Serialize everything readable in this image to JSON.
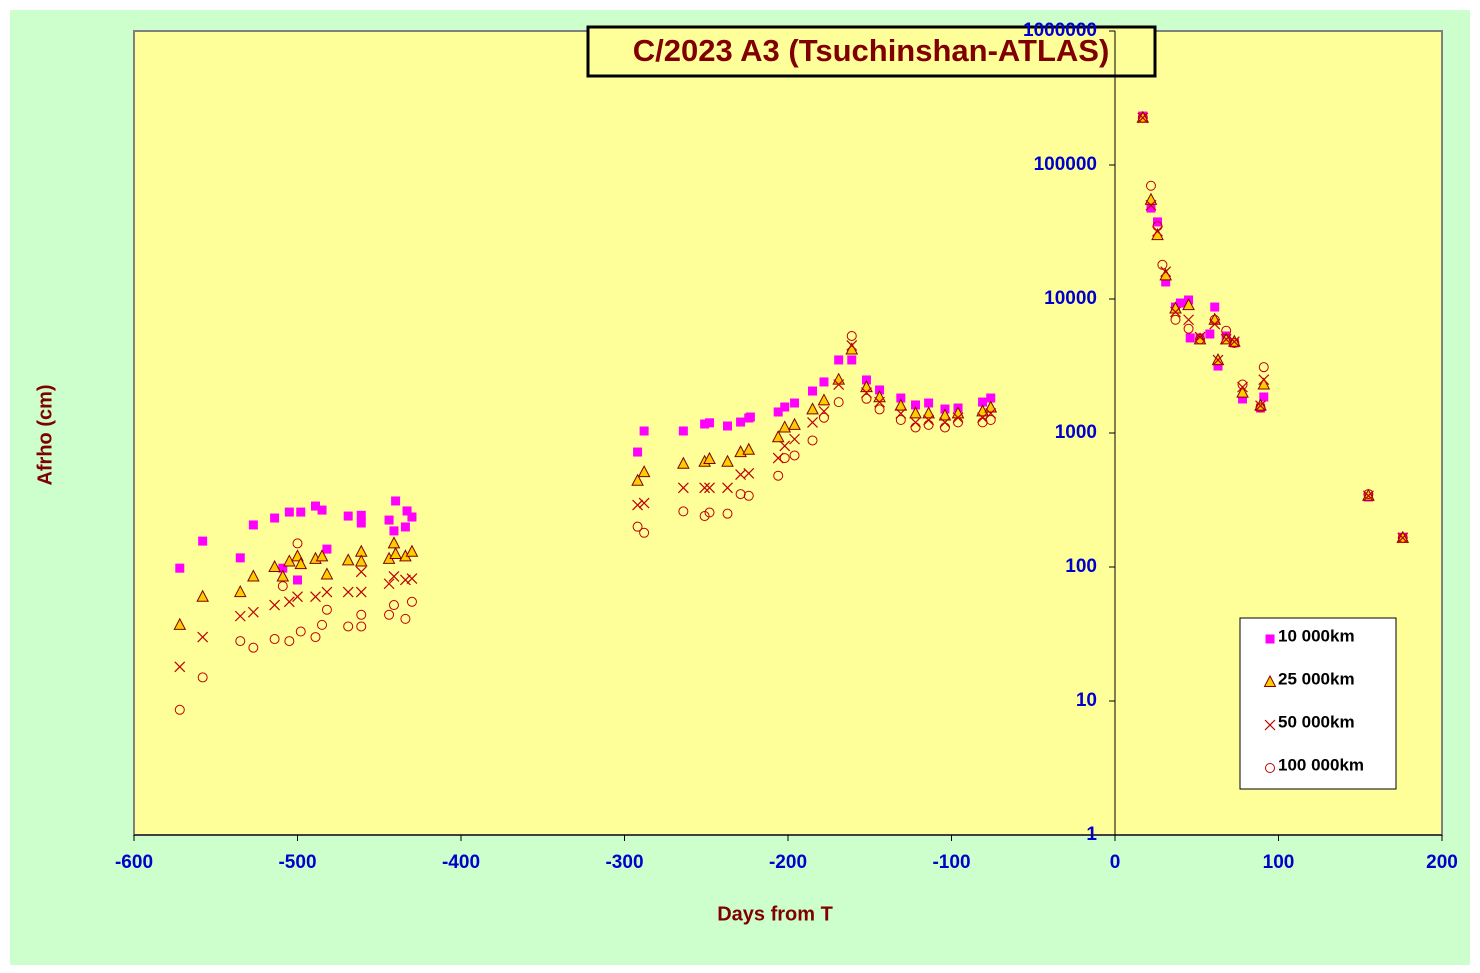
{
  "chart_data": {
    "type": "scatter",
    "title": "C/2023 A3 (Tsuchinshan-ATLAS)",
    "x_label": "Days from T",
    "y_label": "Afrho (cm)",
    "log_y": true,
    "xlim": [
      -600,
      200
    ],
    "xticks": [
      -600,
      -500,
      -400,
      -300,
      -200,
      -100,
      0,
      100,
      200
    ],
    "ylim": [
      1,
      1000000
    ],
    "yticks": [
      1,
      10,
      100,
      1000,
      10000,
      100000,
      1000000
    ],
    "legend": "lower right",
    "series": [
      {
        "name": "10 000km",
        "color": "#ff00ff",
        "marker": "square",
        "x": [
          -572,
          -558,
          -535,
          -527,
          -514,
          -509,
          -505,
          -500,
          -498,
          -489,
          -485,
          -482,
          -469,
          -461,
          -461,
          -444,
          -441,
          -440,
          -434,
          -433,
          -430,
          -292,
          -288,
          -264,
          -251,
          -248,
          -237,
          -229,
          -224,
          -223,
          -206,
          -202,
          -196,
          -185,
          -178,
          -169,
          -161,
          -152,
          -144,
          -131,
          -122,
          -114,
          -104,
          -96,
          -81,
          -76,
          17,
          22,
          26,
          31,
          37,
          40,
          45,
          46,
          52,
          58,
          61,
          63,
          68,
          73,
          78,
          89,
          91,
          155,
          176
        ],
        "values": [
          98,
          156,
          117,
          206,
          232,
          98,
          257,
          80,
          257,
          285,
          266,
          136,
          240,
          243,
          213,
          224,
          186,
          311,
          199,
          262,
          236,
          721,
          1035,
          1035,
          1167,
          1191,
          1128,
          1207,
          1294,
          1316,
          1435,
          1563,
          1674,
          2057,
          2404,
          3509,
          3509,
          2488,
          2094,
          1824,
          1619,
          1674,
          1510,
          1536,
          1702,
          1824,
          232000,
          47700,
          37600,
          13400,
          8710,
          9330,
          9830,
          5120,
          5120,
          5480,
          8710,
          3160,
          5300,
          4700,
          1795,
          1536,
          1857,
          333,
          167
        ]
      },
      {
        "name": "25 000km",
        "color": "#ffcc00",
        "marker": "triangle",
        "x": [
          -572,
          -558,
          -535,
          -527,
          -514,
          -509,
          -505,
          -500,
          -498,
          -489,
          -485,
          -482,
          -469,
          -461,
          -461,
          -444,
          -441,
          -440,
          -434,
          -430,
          -292,
          -288,
          -264,
          -251,
          -248,
          -237,
          -229,
          -224,
          -206,
          -202,
          -196,
          -185,
          -178,
          -169,
          -161,
          -152,
          -144,
          -131,
          -122,
          -114,
          -104,
          -96,
          -81,
          -76,
          17,
          22,
          26,
          31,
          37,
          45,
          52,
          61,
          63,
          68,
          73,
          78,
          89,
          91,
          155,
          176
        ],
        "values": [
          37,
          60,
          65,
          85,
          100,
          85,
          110,
          120,
          105,
          115,
          120,
          88,
          112,
          130,
          110,
          115,
          150,
          125,
          120,
          130,
          440,
          510,
          590,
          610,
          640,
          610,
          720,
          750,
          930,
          1100,
          1150,
          1500,
          1750,
          2500,
          4200,
          2200,
          1850,
          1600,
          1400,
          1400,
          1350,
          1400,
          1450,
          1550,
          225000,
          55000,
          30000,
          15000,
          8500,
          9000,
          5000,
          7000,
          3500,
          5000,
          4800,
          2000,
          1600,
          2300,
          340,
          165
        ]
      },
      {
        "name": "50 000km",
        "color": "#c00000",
        "marker": "cross",
        "x": [
          -572,
          -558,
          -535,
          -527,
          -514,
          -505,
          -500,
          -489,
          -482,
          -469,
          -461,
          -461,
          -444,
          -441,
          -434,
          -430,
          -292,
          -288,
          -264,
          -251,
          -248,
          -237,
          -229,
          -224,
          -206,
          -202,
          -196,
          -185,
          -178,
          -169,
          -161,
          -152,
          -144,
          -131,
          -122,
          -114,
          -104,
          -96,
          -81,
          -76,
          17,
          22,
          26,
          31,
          37,
          45,
          52,
          61,
          63,
          68,
          73,
          78,
          89,
          91,
          155,
          176
        ],
        "values": [
          18,
          30,
          43,
          46,
          52,
          55,
          60,
          60,
          65,
          65,
          65,
          92,
          75,
          85,
          80,
          82,
          290,
          300,
          390,
          390,
          390,
          390,
          490,
          500,
          650,
          800,
          900,
          1200,
          1450,
          2300,
          4500,
          2000,
          1700,
          1400,
          1200,
          1250,
          1200,
          1300,
          1300,
          1400,
          225000,
          50000,
          32000,
          16000,
          8000,
          7000,
          5200,
          6500,
          3500,
          5000,
          4800,
          2200,
          1600,
          2500,
          340,
          165
        ]
      },
      {
        "name": "100 000km",
        "color": "#c00000",
        "marker": "circle",
        "x": [
          -572,
          -558,
          -535,
          -527,
          -514,
          -509,
          -505,
          -500,
          -498,
          -489,
          -485,
          -482,
          -469,
          -461,
          -461,
          -444,
          -441,
          -434,
          -430,
          -292,
          -288,
          -264,
          -251,
          -248,
          -237,
          -229,
          -224,
          -206,
          -202,
          -196,
          -185,
          -178,
          -169,
          -161,
          -152,
          -144,
          -131,
          -122,
          -114,
          -104,
          -96,
          -81,
          -76,
          17,
          22,
          26,
          29,
          37,
          45,
          52,
          61,
          68,
          73,
          78,
          89,
          91,
          155,
          176
        ],
        "values": [
          8.6,
          15,
          28,
          25,
          29,
          72,
          28,
          150,
          33,
          30,
          37,
          48,
          36,
          36,
          44,
          44,
          52,
          41,
          55,
          200,
          180,
          260,
          240,
          255,
          250,
          350,
          340,
          480,
          650,
          680,
          880,
          1300,
          1700,
          5300,
          1800,
          1500,
          1250,
          1100,
          1150,
          1100,
          1200,
          1200,
          1250,
          225000,
          70000,
          35000,
          18000,
          7000,
          6000,
          5000,
          7000,
          5800,
          4700,
          2300,
          1550,
          3100,
          350,
          165
        ]
      }
    ]
  }
}
